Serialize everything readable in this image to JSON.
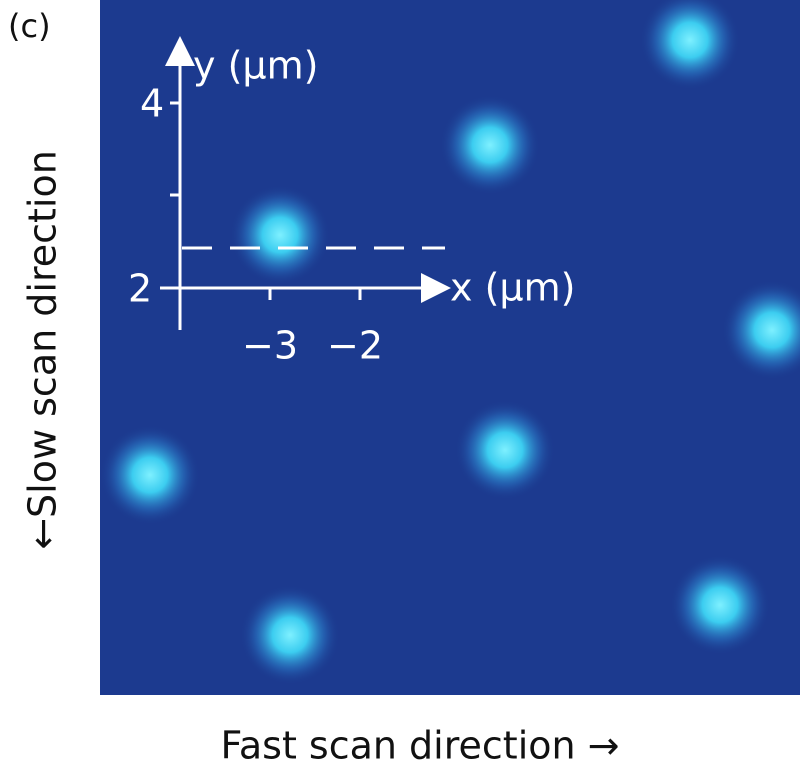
{
  "panel_label": "(c)",
  "inset_axes": {
    "y_label": "y (μm)",
    "x_label": "x (μm)",
    "y_tick_labels": [
      "4",
      "2"
    ],
    "x_tick_labels": [
      "−3",
      "−2"
    ]
  },
  "y_axis_label": "←Slow scan direction",
  "x_axis_label": "Fast scan direction →"
}
